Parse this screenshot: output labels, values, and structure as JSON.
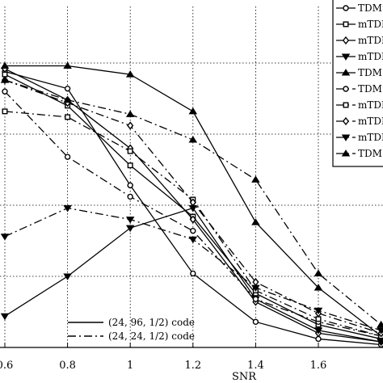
{
  "chart_data": {
    "type": "line",
    "title": "",
    "xlabel": "SNR",
    "ylabel": "",
    "xlim": [
      0.6,
      1.8
    ],
    "ylim": [
      0,
      1
    ],
    "x_ticks": [
      "0.6",
      "0.8",
      "1",
      "1.2",
      "1.4",
      "1.6"
    ],
    "grid": true,
    "legend_position": "top-right",
    "x": [
      0.6,
      0.8,
      1.0,
      1.2,
      1.4,
      1.6,
      1.8
    ],
    "series": [
      {
        "name": "TDM",
        "marker": "circle",
        "dash": "solid",
        "values": [
          0.97,
          0.91,
          0.57,
          0.26,
          0.09,
          0.03,
          0.01
        ]
      },
      {
        "name": "mTDM",
        "marker": "square",
        "dash": "solid",
        "values": [
          0.96,
          0.85,
          0.64,
          0.46,
          0.19,
          0.08,
          0.03
        ]
      },
      {
        "name": "mTDM",
        "marker": "diamond",
        "dash": "solid",
        "values": [
          0.98,
          0.87,
          0.7,
          0.45,
          0.16,
          0.05,
          0.02
        ]
      },
      {
        "name": "mTDM",
        "marker": "triangle-down",
        "dash": "solid",
        "values": [
          0.11,
          0.25,
          0.42,
          0.49,
          0.17,
          0.06,
          0.02
        ]
      },
      {
        "name": "TDM",
        "marker": "triangle-up",
        "dash": "solid",
        "values": [
          0.99,
          0.99,
          0.96,
          0.83,
          0.44,
          0.21,
          0.04
        ]
      },
      {
        "name": "TDM",
        "marker": "circle",
        "dash": "dashdot",
        "values": [
          0.9,
          0.67,
          0.53,
          0.41,
          0.17,
          0.09,
          0.04
        ]
      },
      {
        "name": "mTDM",
        "marker": "square",
        "dash": "dashdot",
        "values": [
          0.83,
          0.81,
          0.69,
          0.52,
          0.2,
          0.1,
          0.04
        ]
      },
      {
        "name": "mTDM",
        "marker": "diamond",
        "dash": "dashdot",
        "values": [
          0.94,
          0.86,
          0.78,
          0.51,
          0.23,
          0.12,
          0.05
        ]
      },
      {
        "name": "mTDM",
        "marker": "triangle-down",
        "dash": "dashdot",
        "values": [
          0.39,
          0.49,
          0.45,
          0.38,
          0.21,
          0.13,
          0.06
        ]
      },
      {
        "name": "TDM",
        "marker": "triangle-up",
        "dash": "dashdot",
        "values": [
          0.94,
          0.87,
          0.82,
          0.73,
          0.59,
          0.26,
          0.08
        ]
      }
    ],
    "line_style_notes": [
      {
        "style": "solid",
        "label": "(24, 96, 1/2) code"
      },
      {
        "style": "dashdot",
        "label": "(24, 24, 1/2) code"
      }
    ]
  },
  "colors": {
    "line": "#000000",
    "grid": "#000000",
    "background": "#ffffff"
  }
}
